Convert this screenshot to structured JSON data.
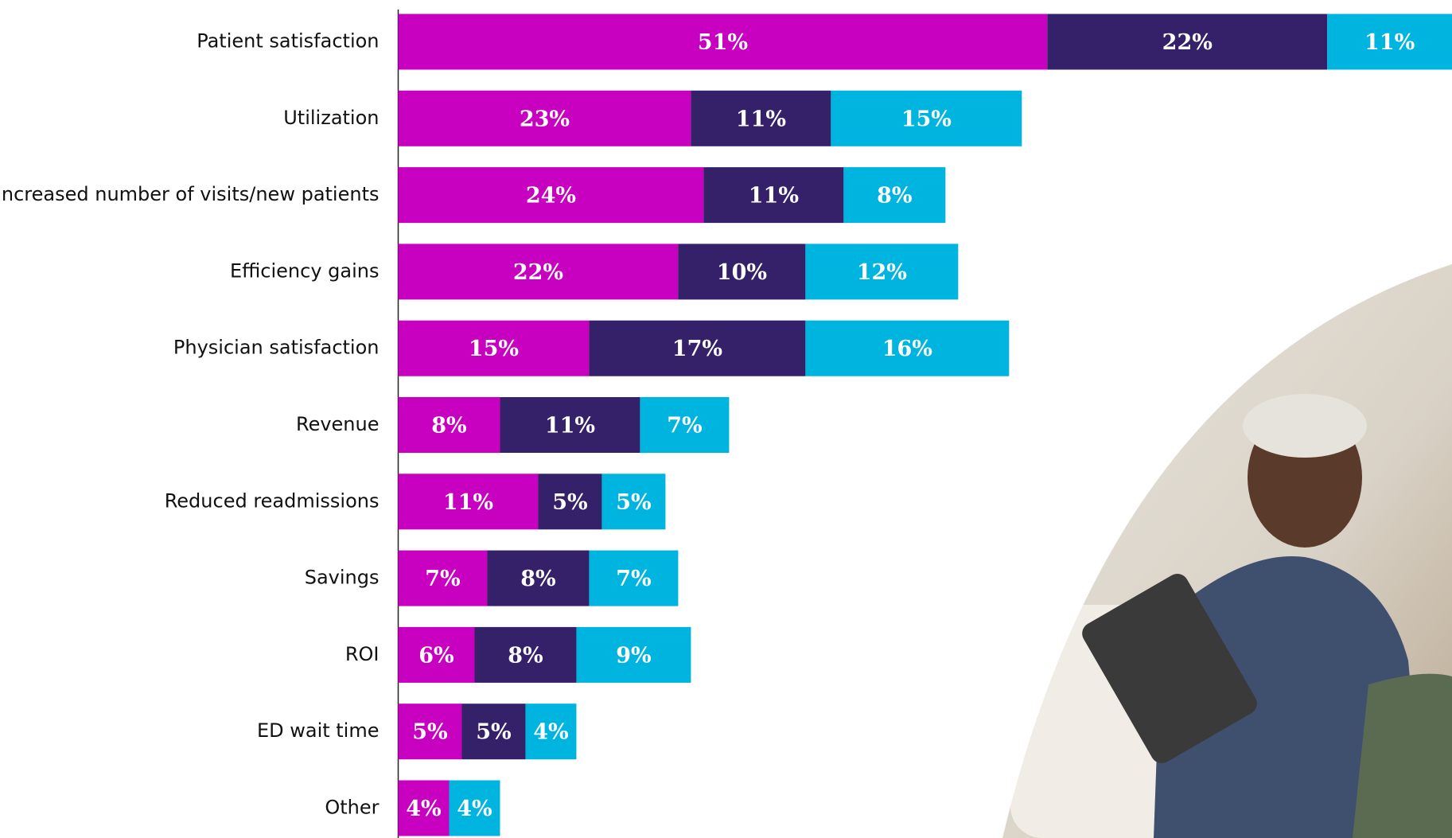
{
  "chart_data": {
    "type": "stacked-bar-horizontal",
    "categories": [
      "Patient satisfaction",
      "Utilization",
      "Increased number of visits/new patients",
      "Efficiency gains",
      "Physician satisfaction",
      "Revenue",
      "Reduced readmissions",
      "Savings",
      "ROI",
      "ED wait time",
      "Other"
    ],
    "series": [
      {
        "color": "#c800c0",
        "values": [
          51,
          23,
          24,
          22,
          15,
          8,
          11,
          7,
          6,
          5,
          4
        ],
        "value_labels": [
          "51%",
          "23%",
          "24%",
          "22%",
          "15%",
          "8%",
          "11%",
          "7%",
          "6%",
          "5%",
          "4%"
        ]
      },
      {
        "color": "#35206a",
        "values": [
          22,
          11,
          11,
          10,
          17,
          11,
          5,
          8,
          8,
          5,
          null
        ],
        "value_labels": [
          "22%",
          "11%",
          "11%",
          "10%",
          "17%",
          "11%",
          "5%",
          "8%",
          "8%",
          "5%",
          null
        ]
      },
      {
        "color": "#00b4e0",
        "values": [
          11,
          15,
          8,
          12,
          16,
          7,
          5,
          7,
          9,
          4,
          4
        ],
        "value_labels": [
          "11%",
          "15%",
          "8%",
          "12%",
          "16%",
          "7%",
          "5%",
          "7%",
          "9%",
          "4%",
          "4%"
        ]
      }
    ],
    "xlim": [
      0,
      82.8
    ]
  }
}
